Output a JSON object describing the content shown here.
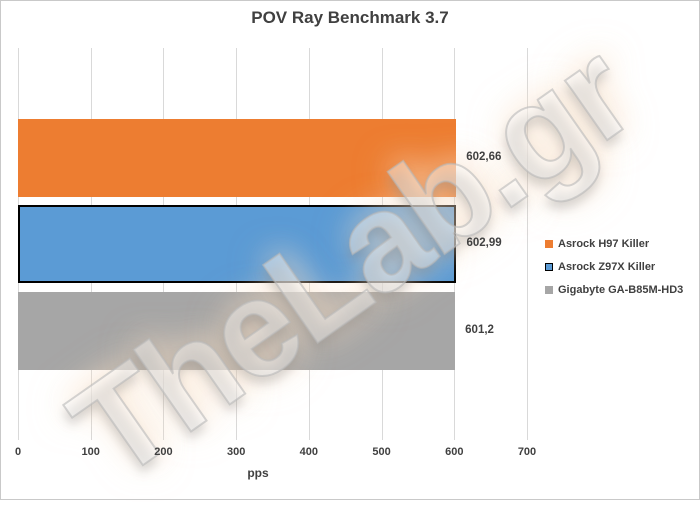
{
  "page": {
    "watermark": "TheLab.gr",
    "background": "#FFFFFF",
    "border_color": "#C9C9C9"
  },
  "chart_data": {
    "type": "bar",
    "orientation": "horizontal",
    "title": "POV Ray Benchmark 3.7",
    "xlabel": "pps",
    "ylabel": "",
    "xlim": [
      0,
      700
    ],
    "x_ticks": [
      0,
      100,
      200,
      300,
      400,
      500,
      600,
      700
    ],
    "grid": true,
    "legend_position": "right",
    "categories": [
      "Asrock H97 Killer",
      "Asrock Z97X Killer",
      "Gigabyte GA-B85M-HD3"
    ],
    "values": [
      602.66,
      602.99,
      601.2
    ],
    "value_labels": [
      "602,66",
      "602,99",
      "601,2"
    ],
    "colors": [
      "#ED7D31",
      "#5B9BD5",
      "#A6A6A6"
    ],
    "bar_border_colors": [
      "none",
      "#000000",
      "none"
    ],
    "gridline_color": "#D9D9D9",
    "text_color": "#404040"
  },
  "legend": {
    "items": [
      {
        "label": "Asrock H97 Killer",
        "color": "#ED7D31",
        "border": "none"
      },
      {
        "label": "Asrock Z97X Killer",
        "color": "#5B9BD5",
        "border": "#000000"
      },
      {
        "label": "Gigabyte GA-B85M-HD3",
        "color": "#A6A6A6",
        "border": "none"
      }
    ]
  }
}
